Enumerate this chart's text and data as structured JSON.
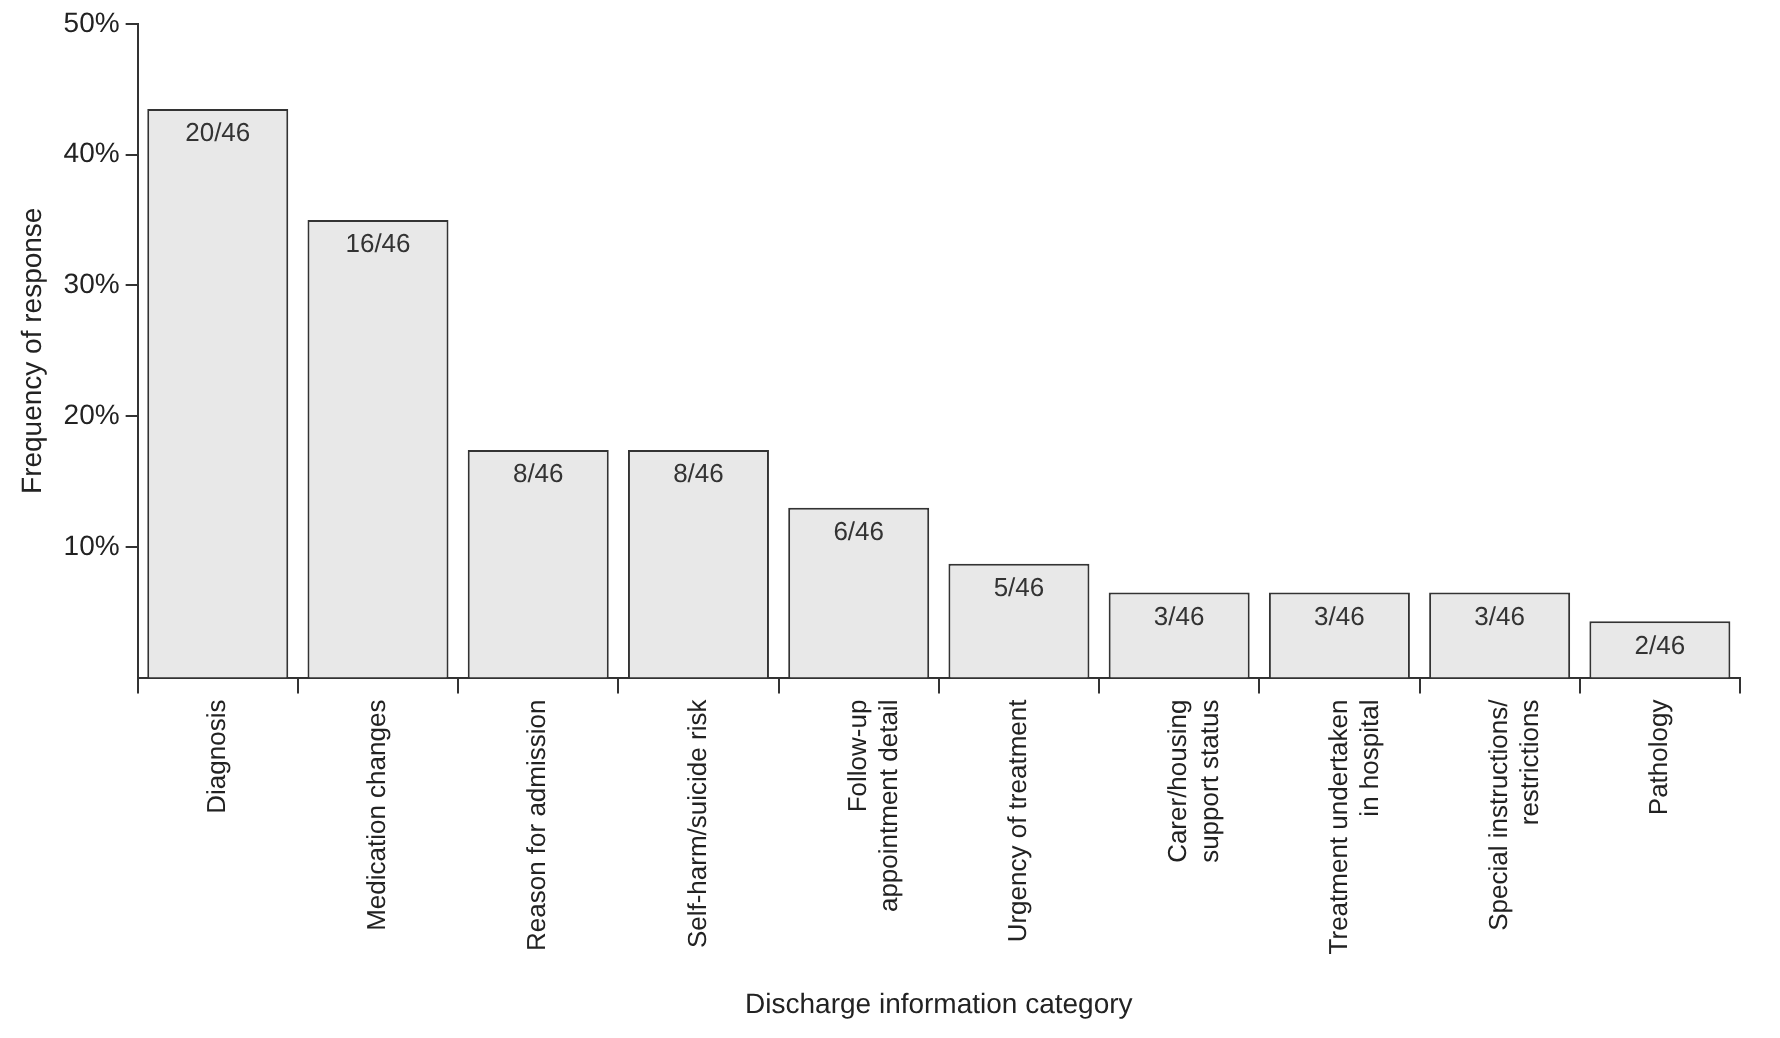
{
  "chart_data": {
    "type": "bar",
    "xlabel": "Discharge information category",
    "ylabel": "Frequency of response",
    "categories": [
      "Diagnosis",
      "Medication changes",
      "Reason for admission",
      "Self-harm/suicide risk",
      "Follow-up\nappointment detail",
      "Urgency of treatment",
      "Carer/housing\nsupport status",
      "Treatment undertaken\nin hospital",
      "Special instructions/\nrestrictions",
      "Pathology"
    ],
    "values": [
      43.5,
      35,
      17.4,
      17.4,
      13,
      8.7,
      6.5,
      6.5,
      6.5,
      4.3
    ],
    "value_labels": [
      "20/46",
      "16/46",
      "8/46",
      "8/46",
      "6/46",
      "5/46",
      "3/46",
      "3/46",
      "3/46",
      "2/46"
    ],
    "color": "#e8e8e8",
    "ylim": [
      0,
      50
    ],
    "yticks": [
      {
        "value": 10,
        "label": "10%"
      },
      {
        "value": 20,
        "label": "20%"
      },
      {
        "value": 30,
        "label": "30%"
      },
      {
        "value": 40,
        "label": "40%"
      },
      {
        "value": 50,
        "label": "50%"
      }
    ],
    "grid": false,
    "legend": false
  }
}
